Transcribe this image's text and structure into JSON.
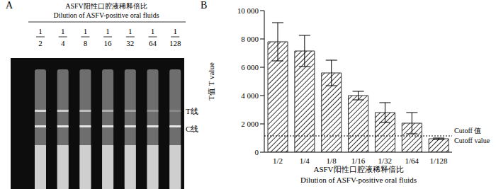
{
  "panel_a": {
    "label": "A",
    "title": "ASFV阳性口腔液稀释倍比",
    "subtitle": "Dilution of ASFV-positive oral fluids",
    "dilutions": [
      "1/2",
      "1/4",
      "1/8",
      "1/16",
      "1/32",
      "1/64",
      "1/128"
    ],
    "t_line_label": "T线",
    "c_line_label": "C线"
  },
  "chart_data": {
    "type": "bar",
    "panel_label": "B",
    "x_label": "ASFV阳性口腔液稀释倍比",
    "x_label_en": "Dilution of ASFV-positive oral fluids",
    "y_label": "T值 T value",
    "categories": [
      "1/2",
      "1/4",
      "1/8",
      "1/16",
      "1/32",
      "1/64",
      "1/128"
    ],
    "values": [
      7800,
      7150,
      5600,
      4000,
      2800,
      2050,
      950
    ],
    "errors": [
      1350,
      1100,
      900,
      300,
      700,
      750,
      50
    ],
    "color": "#333333",
    "ylim": [
      0,
      10000
    ],
    "yticks": [
      0,
      {
        "value": 2000,
        "label": "2 000"
      },
      {
        "value": 4000,
        "label": "4 000"
      },
      {
        "value": 6000,
        "label": "6 000"
      },
      {
        "value": 8000,
        "label": "8 000"
      },
      {
        "value": 10000,
        "label": "10 000"
      }
    ],
    "cutoff": 1150,
    "cutoff_label": "Cutoff 值",
    "cutoff_label_en": "Cutoff value",
    "grid": false
  }
}
